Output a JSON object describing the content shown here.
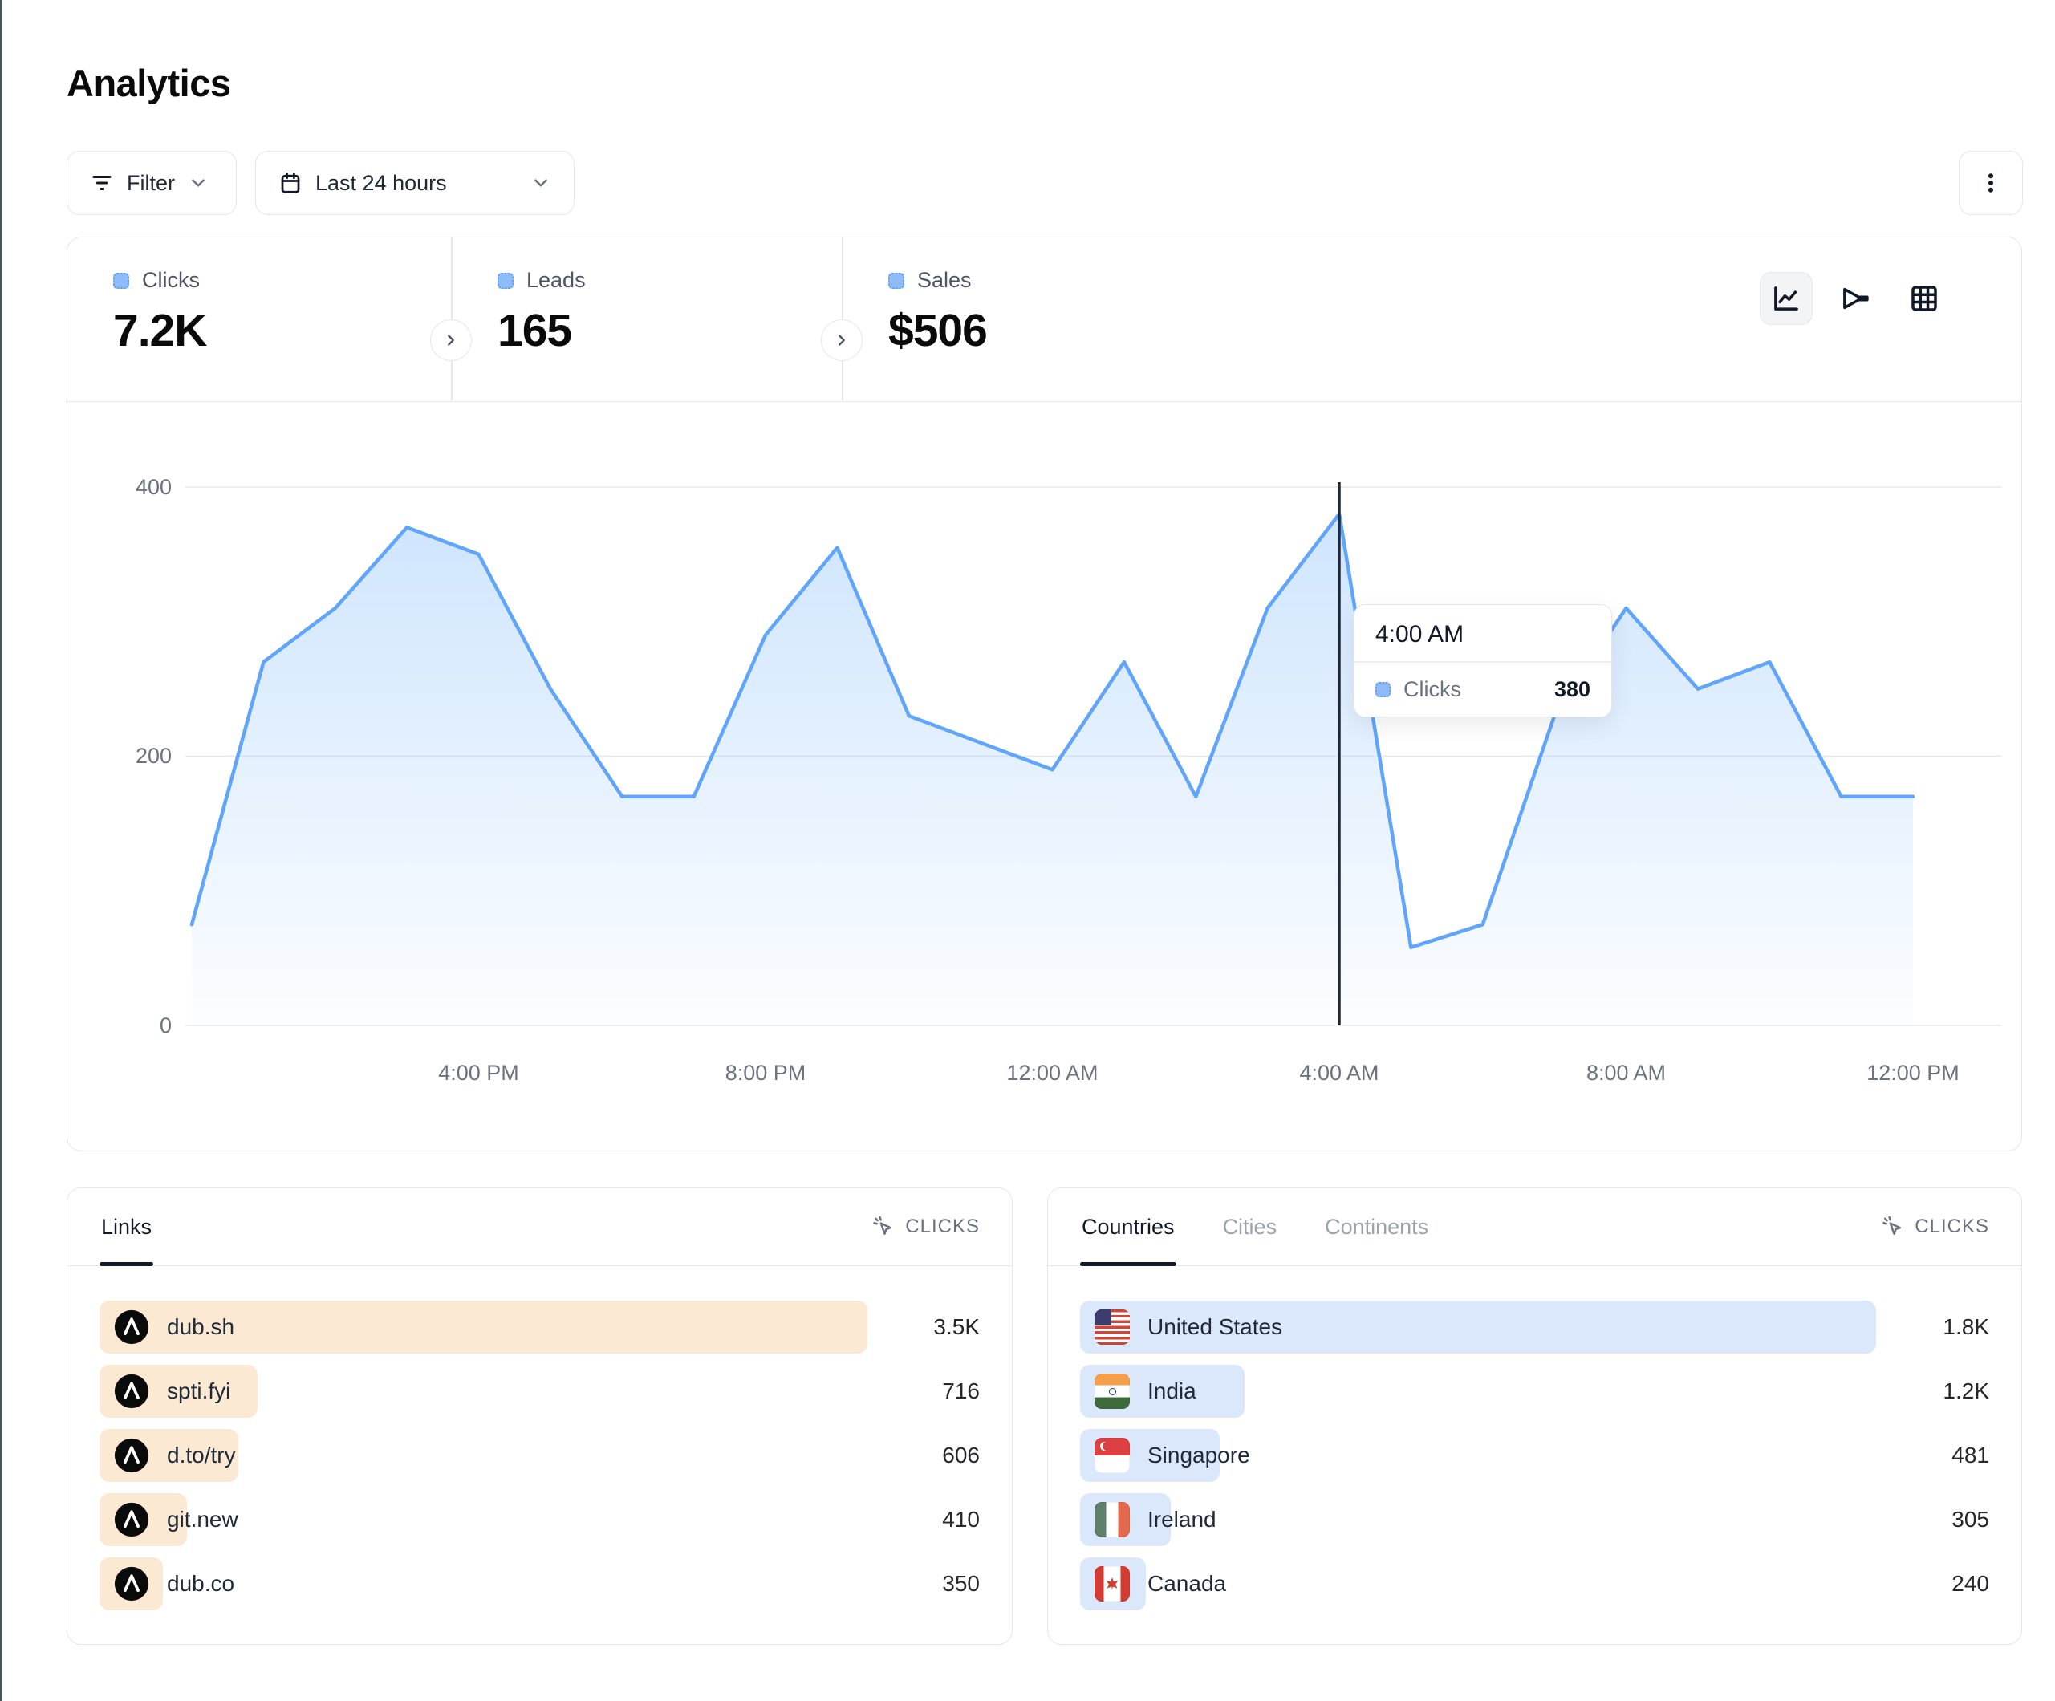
{
  "page": {
    "title": "Analytics"
  },
  "toolbar": {
    "filter": {
      "label": "Filter"
    },
    "date_range": {
      "label": "Last 24 hours"
    }
  },
  "stats": {
    "tabs": [
      {
        "label": "Clicks",
        "value": "7.2K",
        "active": true
      },
      {
        "label": "Leads",
        "value": "165",
        "active": false
      },
      {
        "label": "Sales",
        "value": "$506",
        "active": false
      }
    ],
    "view_toggles": [
      "line-chart",
      "funnel-chart",
      "table-grid"
    ],
    "active_view": "line-chart"
  },
  "chart_data": {
    "type": "area",
    "series_name": "Clicks",
    "x": [
      "12:00 PM",
      "1:00 PM",
      "2:00 PM",
      "3:00 PM",
      "4:00 PM",
      "5:00 PM",
      "6:00 PM",
      "7:00 PM",
      "8:00 PM",
      "9:00 PM",
      "10:00 PM",
      "11:00 PM",
      "12:00 AM",
      "1:00 AM",
      "2:00 AM",
      "3:00 AM",
      "4:00 AM",
      "5:00 AM",
      "6:00 AM",
      "7:00 AM",
      "8:00 AM",
      "9:00 AM",
      "10:00 AM",
      "11:00 AM",
      "12:00 PM"
    ],
    "values": [
      75,
      270,
      310,
      370,
      350,
      250,
      170,
      170,
      290,
      355,
      230,
      210,
      190,
      270,
      170,
      310,
      380,
      58,
      75,
      230,
      310,
      250,
      270,
      170,
      170
    ],
    "ylim": [
      0,
      400
    ],
    "yticks": [
      0,
      200,
      400
    ],
    "ytick_labels": [
      "0",
      "200",
      "400"
    ],
    "xtick_indices": [
      4,
      8,
      12,
      16,
      20,
      24
    ],
    "xtick_labels": [
      "4:00 PM",
      "8:00 PM",
      "12:00 AM",
      "4:00 AM",
      "8:00 AM",
      "12:00 PM"
    ],
    "grid": true,
    "legend_position": "none",
    "line_color": "#60a5fa"
  },
  "tooltip": {
    "index": 16,
    "time": "4:00 AM",
    "series": "Clicks",
    "value": "380"
  },
  "links_panel": {
    "tab": "Links",
    "metric_label": "CLICKS",
    "rows": [
      {
        "label": "dub.sh",
        "value": "3.5K",
        "bar_pct": 97
      },
      {
        "label": "spti.fyi",
        "value": "716",
        "bar_pct": 20
      },
      {
        "label": "d.to/try",
        "value": "606",
        "bar_pct": 17.5
      },
      {
        "label": "git.new",
        "value": "410",
        "bar_pct": 11
      },
      {
        "label": "dub.co",
        "value": "350",
        "bar_pct": 8
      }
    ]
  },
  "geo_panel": {
    "tabs": [
      "Countries",
      "Cities",
      "Continents"
    ],
    "active_tab": "Countries",
    "metric_label": "CLICKS",
    "rows": [
      {
        "label": "United States",
        "value": "1.8K",
        "flag": "us",
        "bar_pct": 97
      },
      {
        "label": "India",
        "value": "1.2K",
        "flag": "in",
        "bar_pct": 20
      },
      {
        "label": "Singapore",
        "value": "481",
        "flag": "sg",
        "bar_pct": 17
      },
      {
        "label": "Ireland",
        "value": "305",
        "flag": "ie",
        "bar_pct": 11
      },
      {
        "label": "Canada",
        "value": "240",
        "flag": "ca",
        "bar_pct": 8
      }
    ]
  },
  "colors": {
    "accent_blue": "#60a5fa",
    "legend_square": "#8fbcf9",
    "link_bar": "#fce9d3",
    "geo_bar": "#dbe7fb",
    "crosshair": "#1f2937",
    "border": "#e5e7eb"
  }
}
